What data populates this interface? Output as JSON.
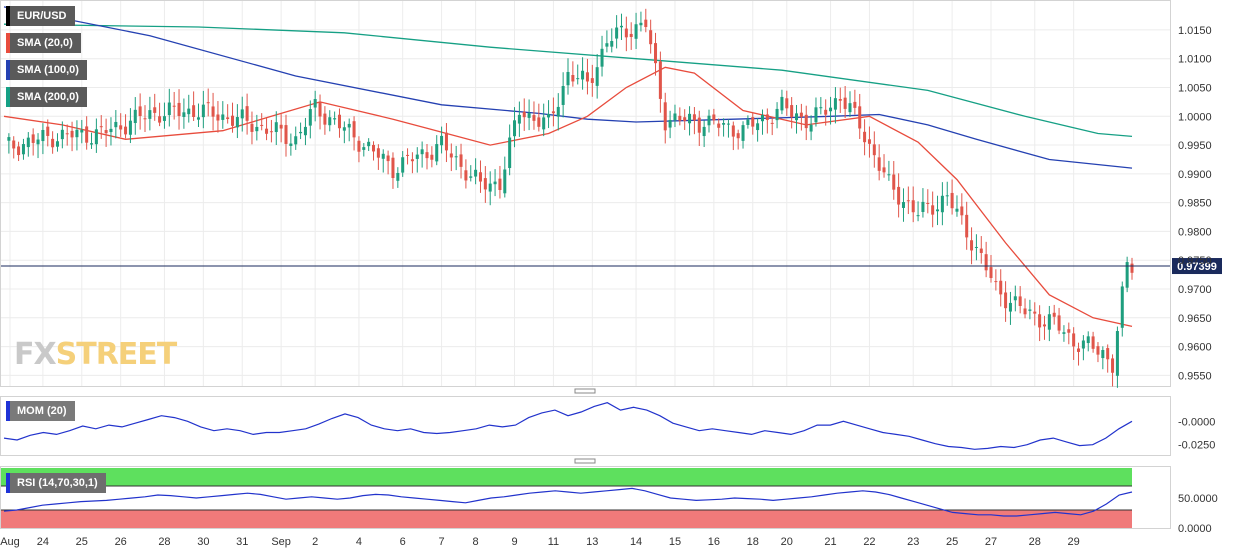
{
  "symbol": "EUR/USD",
  "legend": {
    "sma20": "SMA (20,0)",
    "sma100": "SMA (100,0)",
    "sma200": "SMA (200,0)",
    "mom": "MOM (20)",
    "rsi": "RSI (14,70,30,1)"
  },
  "watermark": {
    "part1": "FX",
    "part2": "STREET"
  },
  "colors": {
    "up": "#1e9e7e",
    "down": "#e0554a",
    "sma20": "#e84c3d",
    "sma100": "#2541b2",
    "sma200": "#16a085",
    "mom": "#2233cc",
    "rsi_upper": "#5ee05e",
    "rsi_lower": "#f07a7a",
    "price_line": "#1a2a5c"
  },
  "current_price": "0.97399",
  "chart_data": [
    {
      "type": "candlestick",
      "title": "EUR/USD",
      "x_ticks": [
        "Aug",
        "24",
        "25",
        "26",
        "28",
        "30",
        "31",
        "Sep",
        "2",
        "4",
        "6",
        "7",
        "8",
        "9",
        "11",
        "13",
        "14",
        "15",
        "16",
        "18",
        "20",
        "21",
        "22",
        "23",
        "25",
        "27",
        "28",
        "29"
      ],
      "y_ticks": [
        "1.0150",
        "1.0100",
        "1.0050",
        "1.0000",
        "0.9950",
        "0.9900",
        "0.9850",
        "0.9800",
        "0.9750",
        "0.9700",
        "0.9650",
        "0.9600",
        "0.9550"
      ],
      "ylim": [
        0.9535,
        1.0195
      ],
      "current": 0.97399,
      "key_levels": [
        {
          "x": 0,
          "close": 0.9945
        },
        {
          "x": 10,
          "close": 0.9965
        },
        {
          "x": 20,
          "close": 0.997
        },
        {
          "x": 30,
          "close": 1.0005
        },
        {
          "x": 40,
          "close": 1.001
        },
        {
          "x": 50,
          "close": 0.999
        },
        {
          "x": 60,
          "close": 0.996
        },
        {
          "x": 64,
          "close": 1.0015
        },
        {
          "x": 72,
          "close": 0.9965
        },
        {
          "x": 80,
          "close": 0.991
        },
        {
          "x": 90,
          "close": 0.995
        },
        {
          "x": 98,
          "close": 0.988
        },
        {
          "x": 102,
          "close": 0.9885
        },
        {
          "x": 106,
          "close": 1.001
        },
        {
          "x": 112,
          "close": 0.9985
        },
        {
          "x": 116,
          "close": 1.0075
        },
        {
          "x": 120,
          "close": 1.0055
        },
        {
          "x": 124,
          "close": 1.013
        },
        {
          "x": 128,
          "close": 1.015
        },
        {
          "x": 132,
          "close": 1.016
        },
        {
          "x": 136,
          "close": 0.9995
        },
        {
          "x": 144,
          "close": 0.999
        },
        {
          "x": 152,
          "close": 0.9975
        },
        {
          "x": 160,
          "close": 1.0015
        },
        {
          "x": 166,
          "close": 0.999
        },
        {
          "x": 172,
          "close": 1.0035
        },
        {
          "x": 176,
          "close": 0.9985
        },
        {
          "x": 182,
          "close": 0.988
        },
        {
          "x": 188,
          "close": 0.983
        },
        {
          "x": 194,
          "close": 0.986
        },
        {
          "x": 200,
          "close": 0.977
        },
        {
          "x": 204,
          "close": 0.97
        },
        {
          "x": 210,
          "close": 0.966
        },
        {
          "x": 216,
          "close": 0.964
        },
        {
          "x": 220,
          "close": 0.961
        },
        {
          "x": 226,
          "close": 0.959
        },
        {
          "x": 228,
          "close": 0.957
        },
        {
          "x": 230,
          "close": 0.9685
        },
        {
          "x": 231,
          "close": 0.974
        }
      ],
      "series": [
        {
          "name": "SMA (20,0)",
          "values": [
            [
              0,
              1.0
            ],
            [
              12,
              0.9985
            ],
            [
              25,
              0.996
            ],
            [
              45,
              0.9975
            ],
            [
              55,
              1.0
            ],
            [
              65,
              1.0025
            ],
            [
              80,
              0.9995
            ],
            [
              100,
              0.995
            ],
            [
              112,
              0.997
            ],
            [
              120,
              1.0
            ],
            [
              128,
              1.005
            ],
            [
              136,
              1.0085
            ],
            [
              142,
              1.0075
            ],
            [
              152,
              1.001
            ],
            [
              165,
              0.9985
            ],
            [
              178,
              1.0
            ],
            [
              188,
              0.9955
            ],
            [
              196,
              0.989
            ],
            [
              206,
              0.978
            ],
            [
              215,
              0.969
            ],
            [
              224,
              0.965
            ],
            [
              232,
              0.9635
            ]
          ]
        },
        {
          "name": "SMA (100,0)",
          "values": [
            [
              0,
              1.019
            ],
            [
              30,
              1.014
            ],
            [
              60,
              1.007
            ],
            [
              90,
              1.002
            ],
            [
              110,
              1.0005
            ],
            [
              120,
              0.9995
            ],
            [
              130,
              0.999
            ],
            [
              150,
              0.9995
            ],
            [
              170,
              1.0
            ],
            [
              180,
              1.0003
            ],
            [
              190,
              0.9985
            ],
            [
              200,
              0.996
            ],
            [
              215,
              0.9925
            ],
            [
              232,
              0.991
            ]
          ]
        },
        {
          "name": "SMA (200,0)",
          "values": [
            [
              0,
              1.016
            ],
            [
              40,
              1.0155
            ],
            [
              70,
              1.0145
            ],
            [
              100,
              1.012
            ],
            [
              130,
              1.01
            ],
            [
              160,
              1.008
            ],
            [
              190,
              1.0045
            ],
            [
              210,
              1.0
            ],
            [
              225,
              0.997
            ],
            [
              232,
              0.9965
            ]
          ]
        }
      ]
    },
    {
      "type": "line",
      "title": "MOM (20)",
      "y_ticks": [
        "-0.0000",
        "-0.0250"
      ],
      "ylim": [
        -0.035,
        0.025
      ],
      "series": [
        {
          "name": "MOM (20)",
          "values": [
            -0.018,
            -0.02,
            -0.015,
            -0.012,
            -0.014,
            -0.01,
            -0.005,
            -0.008,
            -0.004,
            -0.006,
            -0.002,
            0.002,
            0.006,
            0.004,
            0.0,
            -0.006,
            -0.01,
            -0.008,
            -0.01,
            -0.014,
            -0.012,
            -0.012,
            -0.01,
            -0.008,
            -0.003,
            0.003,
            0.008,
            0.004,
            -0.004,
            -0.008,
            -0.01,
            -0.008,
            -0.012,
            -0.013,
            -0.012,
            -0.01,
            -0.008,
            -0.004,
            -0.006,
            -0.004,
            0.004,
            0.009,
            0.012,
            0.006,
            0.01,
            0.016,
            0.02,
            0.012,
            0.015,
            0.012,
            0.006,
            -0.002,
            -0.006,
            -0.01,
            -0.008,
            -0.01,
            -0.012,
            -0.014,
            -0.01,
            -0.012,
            -0.014,
            -0.01,
            -0.004,
            -0.004,
            0.0,
            -0.004,
            -0.008,
            -0.012,
            -0.014,
            -0.016,
            -0.02,
            -0.024,
            -0.027,
            -0.028,
            -0.03,
            -0.029,
            -0.027,
            -0.028,
            -0.025,
            -0.02,
            -0.018,
            -0.022,
            -0.026,
            -0.025,
            -0.018,
            -0.008,
            0.0
          ]
        }
      ]
    },
    {
      "type": "line",
      "title": "RSI (14,70,30,1)",
      "y_ticks": [
        "50.0000",
        "0.0000"
      ],
      "ylim": [
        0,
        100
      ],
      "zones": [
        {
          "from": 70,
          "to": 100,
          "label": "overbought"
        },
        {
          "from": 0,
          "to": 30,
          "label": "oversold"
        }
      ],
      "series": [
        {
          "name": "RSI (14,70,30,1)",
          "values": [
            28,
            30,
            34,
            38,
            40,
            42,
            44,
            45,
            46,
            48,
            50,
            52,
            55,
            54,
            52,
            50,
            52,
            54,
            56,
            58,
            56,
            52,
            48,
            50,
            52,
            50,
            48,
            50,
            54,
            56,
            55,
            52,
            50,
            48,
            46,
            44,
            42,
            46,
            50,
            52,
            55,
            58,
            60,
            62,
            60,
            58,
            60,
            62,
            64,
            66,
            62,
            56,
            50,
            48,
            46,
            47,
            48,
            50,
            49,
            48,
            46,
            48,
            50,
            52,
            55,
            58,
            60,
            62,
            60,
            56,
            50,
            44,
            38,
            32,
            26,
            24,
            22,
            22,
            20,
            20,
            22,
            24,
            26,
            24,
            22,
            28,
            40,
            55,
            60
          ]
        }
      ]
    }
  ]
}
